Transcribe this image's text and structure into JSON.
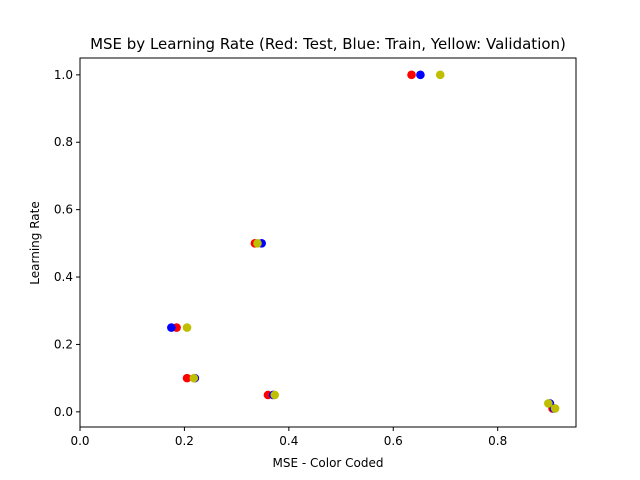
{
  "chart_data": {
    "type": "scatter",
    "title": "MSE by Learning Rate (Red: Test, Blue: Train, Yellow: Validation)",
    "xlabel": "MSE - Color Coded",
    "ylabel": "Learning Rate",
    "xlim": [
      0.0,
      0.95
    ],
    "ylim": [
      -0.045,
      1.05
    ],
    "xticks": [
      "0.0",
      "0.2",
      "0.4",
      "0.6",
      "0.8"
    ],
    "yticks": [
      "0.0",
      "0.2",
      "0.4",
      "0.6",
      "0.8",
      "1.0"
    ],
    "grid": false,
    "series": [
      {
        "name": "Test",
        "color": "#ff0000",
        "points": [
          {
            "x": 0.635,
            "y": 1.0
          },
          {
            "x": 0.335,
            "y": 0.5
          },
          {
            "x": 0.185,
            "y": 0.25
          },
          {
            "x": 0.205,
            "y": 0.1
          },
          {
            "x": 0.36,
            "y": 0.05
          },
          {
            "x": 0.905,
            "y": 0.01
          }
        ]
      },
      {
        "name": "Train",
        "color": "#0000ff",
        "points": [
          {
            "x": 0.652,
            "y": 1.0
          },
          {
            "x": 0.348,
            "y": 0.5
          },
          {
            "x": 0.175,
            "y": 0.25
          },
          {
            "x": 0.22,
            "y": 0.1
          },
          {
            "x": 0.37,
            "y": 0.05
          },
          {
            "x": 0.9,
            "y": 0.025
          },
          {
            "x": 0.908,
            "y": 0.01
          }
        ]
      },
      {
        "name": "Validation",
        "color": "#bfbf00",
        "points": [
          {
            "x": 0.69,
            "y": 1.0
          },
          {
            "x": 0.34,
            "y": 0.5
          },
          {
            "x": 0.205,
            "y": 0.25
          },
          {
            "x": 0.218,
            "y": 0.1
          },
          {
            "x": 0.373,
            "y": 0.05
          },
          {
            "x": 0.897,
            "y": 0.025
          },
          {
            "x": 0.91,
            "y": 0.01
          }
        ]
      }
    ]
  }
}
